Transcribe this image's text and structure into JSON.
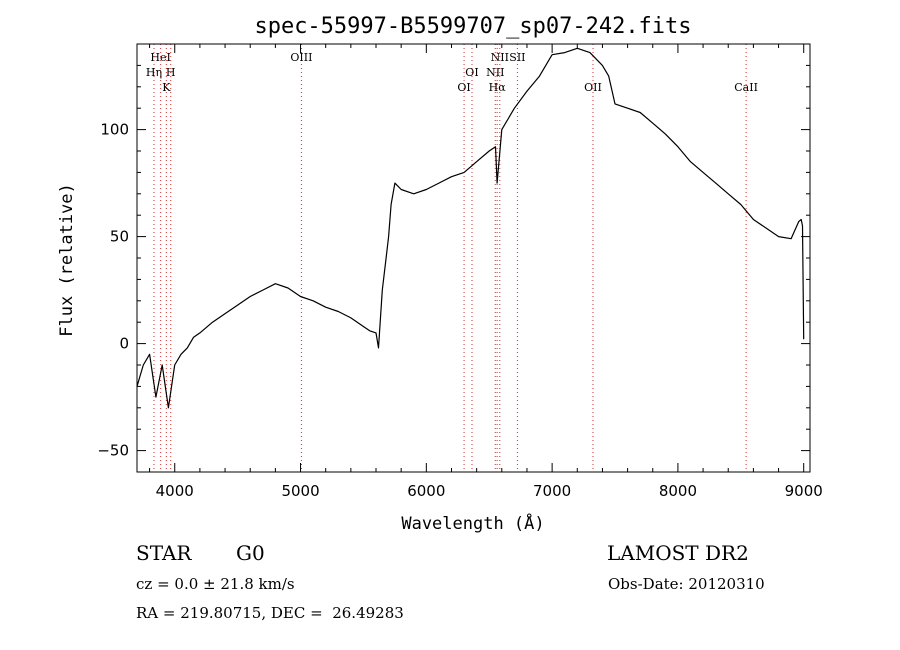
{
  "chart_data": {
    "type": "line",
    "title": "spec-55997-B5599707_sp07-242.fits",
    "xlabel": "Wavelength (Å)",
    "ylabel": "Flux (relative)",
    "xlim": [
      3700,
      9050
    ],
    "ylim": [
      -60,
      140
    ],
    "xticks": [
      4000,
      5000,
      6000,
      7000,
      8000,
      9000
    ],
    "yticks": [
      -50,
      0,
      50,
      100
    ],
    "grid": false,
    "series": [
      {
        "color": "#000000",
        "x": [
          3700,
          3750,
          3800,
          3850,
          3900,
          3950,
          4000,
          4050,
          4100,
          4150,
          4200,
          4300,
          4400,
          4500,
          4600,
          4700,
          4800,
          4900,
          5000,
          5100,
          5200,
          5300,
          5400,
          5500,
          5550,
          5600,
          5620,
          5650,
          5680,
          5700,
          5720,
          5750,
          5800,
          5900,
          6000,
          6100,
          6200,
          6300,
          6400,
          6500,
          6550,
          6563,
          6600,
          6700,
          6800,
          6900,
          7000,
          7100,
          7200,
          7300,
          7400,
          7450,
          7500,
          7600,
          7700,
          7800,
          7900,
          8000,
          8100,
          8200,
          8300,
          8400,
          8500,
          8600,
          8700,
          8800,
          8900,
          8960,
          8980,
          8990,
          9000
        ],
        "y": [
          -20,
          -10,
          -5,
          -25,
          -10,
          -30,
          -10,
          -5,
          -2,
          3,
          5,
          10,
          14,
          18,
          22,
          25,
          28,
          26,
          22,
          20,
          17,
          15,
          12,
          8,
          6,
          5,
          -2,
          25,
          40,
          50,
          65,
          75,
          72,
          70,
          72,
          75,
          78,
          80,
          85,
          90,
          92,
          75,
          100,
          110,
          118,
          125,
          135,
          136,
          138,
          136,
          130,
          125,
          112,
          110,
          108,
          103,
          98,
          92,
          85,
          80,
          75,
          70,
          65,
          58,
          54,
          50,
          49,
          57,
          58,
          55,
          2
        ]
      }
    ],
    "lines": [
      {
        "label": "HeI",
        "x": 3888,
        "row": 0
      },
      {
        "label": "Hη",
        "x": 3835,
        "row": 1
      },
      {
        "label": "H",
        "x": 3968,
        "row": 1
      },
      {
        "label": "K",
        "x": 3933,
        "row": 2
      },
      {
        "label": "OIII",
        "x": 5007,
        "row": 0
      },
      {
        "label": "OI",
        "x": 6363,
        "row": 1
      },
      {
        "label": "OI",
        "x": 6300,
        "row": 2
      },
      {
        "label": "NII",
        "x": 6584,
        "row": 0
      },
      {
        "label": "SII",
        "x": 6724,
        "row": 0
      },
      {
        "label": "NII",
        "x": 6548,
        "row": 1
      },
      {
        "label": "Hα",
        "x": 6563,
        "row": 2
      },
      {
        "label": "OII",
        "x": 7325,
        "row": 2
      },
      {
        "label": "CaII",
        "x": 8542,
        "row": 2
      }
    ]
  },
  "info": {
    "object_class": "STAR",
    "subclass": "G0",
    "survey": "LAMOST DR2",
    "redshift": "cz = 0.0 ± 21.8 km/s",
    "obs_date": "Obs-Date: 20120310",
    "coords": "RA = 219.80715, DEC =  26.49283"
  }
}
